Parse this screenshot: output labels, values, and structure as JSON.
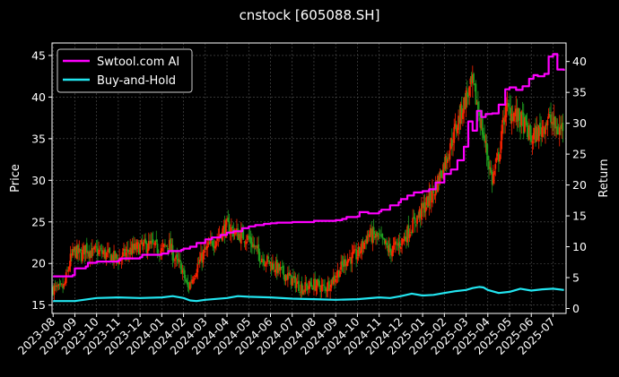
{
  "chart_data": {
    "type": "line",
    "title": "cnstock [605088.SH]",
    "ylabel_left": "Price",
    "ylabel_right": "Return",
    "ylim_left": [
      14,
      46.5
    ],
    "ylim_right": [
      -0.8,
      43.0
    ],
    "yticks_left": [
      15,
      20,
      25,
      30,
      35,
      40,
      45
    ],
    "yticks_right": [
      0,
      5,
      10,
      15,
      20,
      25,
      30,
      35,
      40
    ],
    "xticks": [
      "2023-08",
      "2023-09",
      "2023-10",
      "2023-11",
      "2023-12",
      "2024-01",
      "2024-02",
      "2024-03",
      "2024-04",
      "2024-05",
      "2024-06",
      "2024-07",
      "2024-08",
      "2024-09",
      "2024-10",
      "2024-11",
      "2024-12",
      "2025-01",
      "2025-02",
      "2025-03",
      "2025-04",
      "2025-05",
      "2025-06",
      "2025-07"
    ],
    "xlim_months": [
      -0.05,
      23.6
    ],
    "grid": true,
    "legend_position": "top-left",
    "colors": {
      "up": "#ff2200",
      "down": "#1f9e1f",
      "strategy": "#ff00ff",
      "buyhold": "#22e5f0"
    },
    "price_series": {
      "name": "candles",
      "x": [
        0,
        0.3,
        0.5,
        0.8,
        1.0,
        1.3,
        1.5,
        1.8,
        2.0,
        2.5,
        3.0,
        3.5,
        4.0,
        4.5,
        5.0,
        5.3,
        5.6,
        5.9,
        6.2,
        6.6,
        7.0,
        7.5,
        8.0,
        8.5,
        9.0,
        9.5,
        10.0,
        10.5,
        11.0,
        11.5,
        12.0,
        12.5,
        13.0,
        13.5,
        14.0,
        14.5,
        15.0,
        15.5,
        16.0,
        16.5,
        17.0,
        17.5,
        18.0,
        18.5,
        19.0,
        19.3,
        19.6,
        19.9,
        20.2,
        20.5,
        20.8,
        21.2,
        21.6,
        22.0,
        22.4,
        22.8,
        23.2,
        23.5
      ],
      "close": [
        17.0,
        16.8,
        17.2,
        20.5,
        21.5,
        21.0,
        22.0,
        21.2,
        21.5,
        21.0,
        20.5,
        21.5,
        22.0,
        22.2,
        21.5,
        22.5,
        20.5,
        19.5,
        17.0,
        19.5,
        21.5,
        23.0,
        24.5,
        23.5,
        23.0,
        21.0,
        20.0,
        19.0,
        18.0,
        17.0,
        17.5,
        17.0,
        18.5,
        20.5,
        21.0,
        23.5,
        23.0,
        21.5,
        22.5,
        24.5,
        26.5,
        28.5,
        32.0,
        36.0,
        40.0,
        41.5,
        38.0,
        34.0,
        30.0,
        33.0,
        38.5,
        38.0,
        37.0,
        35.0,
        36.0,
        37.5,
        36.0,
        36.5
      ]
    },
    "series": [
      {
        "name": "Swtool.com AI",
        "x": [
          0,
          0.9,
          1.0,
          1.5,
          1.6,
          2.0,
          3.0,
          3.1,
          4.0,
          4.1,
          5.0,
          5.3,
          5.9,
          6.0,
          6.3,
          6.6,
          7.0,
          7.3,
          7.7,
          8.0,
          8.3,
          8.7,
          9.0,
          9.3,
          9.7,
          10.0,
          10.3,
          11.0,
          12.0,
          13.0,
          13.3,
          13.5,
          14.0,
          14.1,
          14.5,
          15.0,
          15.1,
          15.5,
          15.9,
          16.0,
          16.3,
          16.6,
          17.0,
          17.3,
          17.6,
          18.0,
          18.3,
          18.6,
          18.9,
          19.1,
          19.3,
          19.5,
          19.7,
          19.9,
          20.2,
          20.5,
          20.8,
          21.0,
          21.3,
          21.6,
          21.9,
          22.1,
          22.3,
          22.6,
          22.8,
          23.0,
          23.2,
          23.5
        ],
        "values": [
          5.2,
          5.4,
          6.5,
          6.8,
          7.4,
          7.6,
          7.8,
          8.1,
          8.3,
          8.7,
          8.9,
          9.3,
          9.5,
          9.7,
          10.0,
          10.6,
          11.2,
          11.5,
          11.9,
          12.3,
          12.5,
          13.0,
          13.3,
          13.5,
          13.7,
          13.8,
          13.9,
          14.0,
          14.2,
          14.3,
          14.5,
          14.8,
          14.9,
          15.6,
          15.4,
          15.7,
          16.0,
          16.7,
          17.2,
          17.7,
          18.3,
          18.8,
          19.0,
          19.3,
          20.4,
          21.8,
          22.5,
          24.0,
          26.2,
          30.3,
          28.8,
          32.0,
          31.0,
          31.5,
          31.6,
          33.0,
          35.5,
          35.8,
          35.4,
          36.0,
          37.2,
          37.8,
          37.6,
          38.0,
          40.8,
          41.2,
          38.7,
          38.5
        ]
      },
      {
        "name": "Buy-and-Hold",
        "x": [
          0,
          1.0,
          2.0,
          3.0,
          4.0,
          5.0,
          5.5,
          6.0,
          6.3,
          6.6,
          7.0,
          8.0,
          8.5,
          9.0,
          10.0,
          11.0,
          12.0,
          13.0,
          14.0,
          15.0,
          15.5,
          16.0,
          16.5,
          17.0,
          17.5,
          18.0,
          18.5,
          19.0,
          19.3,
          19.6,
          19.8,
          20.0,
          20.5,
          21.0,
          21.5,
          22.0,
          22.5,
          23.0,
          23.5
        ],
        "values": [
          1.2,
          1.2,
          1.7,
          1.8,
          1.7,
          1.8,
          2.0,
          1.7,
          1.3,
          1.2,
          1.4,
          1.7,
          2.0,
          1.9,
          1.8,
          1.6,
          1.5,
          1.4,
          1.5,
          1.8,
          1.7,
          2.0,
          2.4,
          2.1,
          2.2,
          2.5,
          2.8,
          3.0,
          3.3,
          3.5,
          3.4,
          3.0,
          2.5,
          2.7,
          3.2,
          2.9,
          3.1,
          3.2,
          3.0
        ]
      }
    ]
  }
}
